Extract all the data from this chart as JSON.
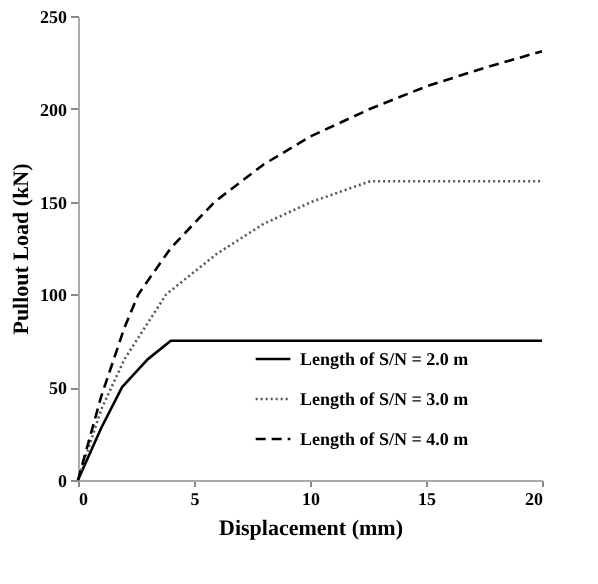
{
  "chart_data": {
    "type": "line",
    "xlabel": "Displacement (mm)",
    "ylabel": "Pullout Load (kN)",
    "xlim": [
      0,
      20
    ],
    "xticks": [
      0,
      5,
      10,
      15,
      20
    ],
    "ylim": [
      0,
      250
    ],
    "yticks": [
      0,
      50,
      100,
      150,
      200,
      250
    ],
    "grid": false,
    "legend": "bottom right",
    "marker": "none",
    "series": [
      {
        "name": "Length of S/N = 2.0 m",
        "color": "#000000",
        "line_style": "solid",
        "x": [
          0,
          1,
          1.9,
          3,
          4,
          20
        ],
        "values": [
          0,
          28,
          50,
          65,
          75,
          75
        ]
      },
      {
        "name": "Length of S/N = 3.0 m",
        "color": "#555555",
        "line_style": "dotted",
        "x": [
          0,
          1,
          2,
          3.8,
          6,
          8,
          10.1,
          12.6,
          20
        ],
        "values": [
          0,
          38,
          65,
          100,
          122,
          138,
          150,
          161,
          161
        ]
      },
      {
        "name": "Length of S/N = 4.0 m",
        "color": "#000000",
        "line_style": "dashed",
        "x": [
          0,
          1,
          2,
          2.6,
          4,
          5.9,
          8,
          10,
          12.6,
          15,
          17.5,
          20
        ],
        "values": [
          0,
          45,
          82,
          100,
          125,
          150,
          170,
          185,
          200,
          212,
          222,
          231
        ]
      }
    ]
  }
}
